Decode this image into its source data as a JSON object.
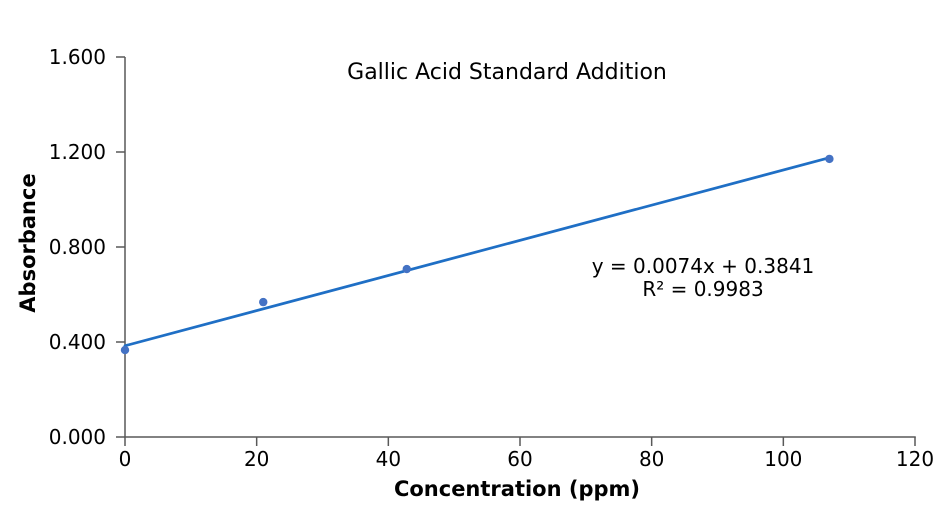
{
  "window": {
    "background_color": "#ffffff"
  },
  "chart_data": {
    "type": "scatter",
    "title": "Gallic Acid Standard Addition",
    "xlabel": "Concentration (ppm)",
    "ylabel": "Absorbance",
    "xlim": [
      0,
      120
    ],
    "ylim": [
      0.0,
      1.6
    ],
    "x_ticks": [
      0,
      20,
      40,
      60,
      80,
      100,
      120
    ],
    "y_ticks": [
      {
        "value": 0.0,
        "label": "0.000"
      },
      {
        "value": 0.4,
        "label": "0.400"
      },
      {
        "value": 0.8,
        "label": "0.800"
      },
      {
        "value": 1.2,
        "label": "1.200"
      },
      {
        "value": 1.6,
        "label": "1.600"
      }
    ],
    "grid": "off",
    "legend": "none",
    "series": [
      {
        "name": "standard-addition-points",
        "marker_color": "#4472C4",
        "marker_radius": 4.2,
        "points": [
          {
            "x": 0,
            "y": 0.366
          },
          {
            "x": 21,
            "y": 0.568
          },
          {
            "x": 42.8,
            "y": 0.707
          },
          {
            "x": 107,
            "y": 1.171
          }
        ]
      }
    ],
    "trendline": {
      "slope": 0.0074,
      "intercept": 0.3841,
      "x_start": 0,
      "x_end": 107,
      "color": "#1F6FC5",
      "stroke_width": 2.75,
      "equation_label": "y = 0.0074x + 0.3841",
      "r_squared_label": "R² = 0.9983"
    },
    "axis_color": "#595959",
    "text_color": "#000000"
  }
}
